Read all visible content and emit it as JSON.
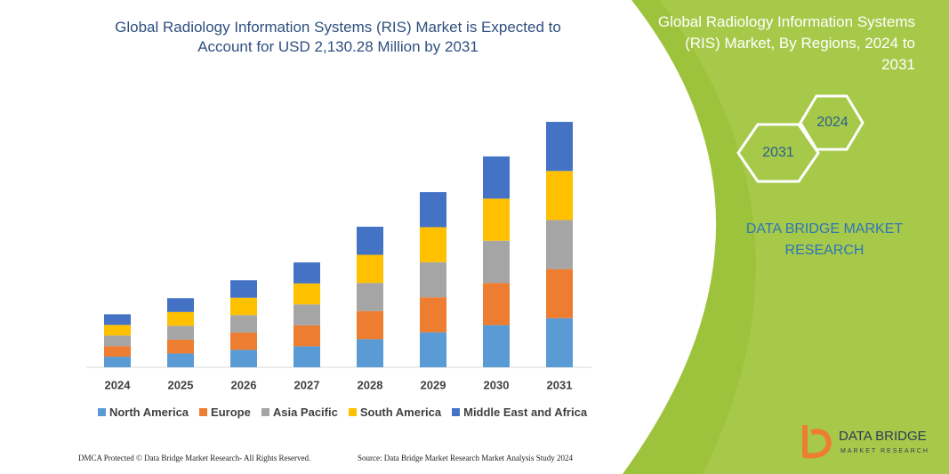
{
  "chart_data": {
    "type": "stacked_bar",
    "title": "Global Radiology Information Systems (RIS) Market is Expected to Account for USD 2,130.28 Million by 2031",
    "categories": [
      "2024",
      "2025",
      "2026",
      "2027",
      "2028",
      "2029",
      "2030",
      "2031"
    ],
    "series": [
      {
        "name": "North America",
        "color": "#5b9bd5",
        "values": [
          92,
          120,
          151,
          182,
          244,
          304,
          366,
          426
        ]
      },
      {
        "name": "Europe",
        "color": "#ed7d31",
        "values": [
          92,
          120,
          151,
          182,
          244,
          304,
          366,
          426
        ]
      },
      {
        "name": "Asia Pacific",
        "color": "#a5a5a5",
        "values": [
          92,
          120,
          151,
          182,
          244,
          304,
          366,
          426
        ]
      },
      {
        "name": "South America",
        "color": "#ffc000",
        "values": [
          92,
          120,
          151,
          182,
          244,
          304,
          366,
          426
        ]
      },
      {
        "name": "Middle East and Africa",
        "color": "#4472c4",
        "values": [
          92,
          120,
          151,
          182,
          244,
          304,
          366,
          426
        ]
      }
    ],
    "ylim": [
      0,
      2300
    ]
  },
  "panel": {
    "title": "Global Radiology Information Systems (RIS) Market, By Regions, 2024 to 2031",
    "badges": [
      "2031",
      "2024"
    ],
    "brand": "DATA BRIDGE MARKET RESEARCH",
    "logo": "DATA BRIDGE",
    "logo_sub": "MARKET RESEARCH"
  },
  "footer": {
    "left": "DMCA Protected © Data Bridge Market Research- All Rights Reserved.",
    "right": "Source: Data Bridge Market Research Market Analysis Study 2024"
  }
}
